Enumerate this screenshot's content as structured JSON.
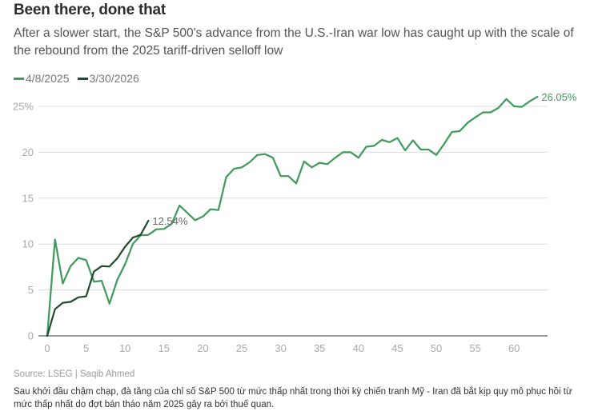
{
  "header": {
    "title": "Been there, done that",
    "subtitle": "After a slower start, the S&P 500's advance from the U.S.-Iran war low has caught up with the scale of the rebound from the 2025 tariff-driven selloff low"
  },
  "legend": [
    {
      "label": "4/8/2025",
      "color": "#3f9a5a"
    },
    {
      "label": "3/30/2026",
      "color": "#1f4d2b"
    }
  ],
  "footer": {
    "source": "Source: LSEG | Saqib Ahmed",
    "caption": "Sau khởi đầu chậm chạp, đà tăng của chỉ số S&P 500 từ mức thấp nhất trong thời kỳ chiến tranh Mỹ - Iran đã bắt kịp quy mô phục hồi từ mức thấp nhất do đợt bán tháo năm 2025 gây ra bởi thuế quan."
  },
  "chart_data": {
    "type": "line",
    "title": "Been there, done that",
    "xlabel": "",
    "ylabel": "",
    "xlim": [
      0,
      64.5
    ],
    "ylim": [
      0,
      26
    ],
    "grid": true,
    "legend_position": "top-left",
    "x_ticks": [
      0,
      5,
      10,
      15,
      20,
      25,
      30,
      35,
      40,
      45,
      50,
      55,
      60
    ],
    "y_ticks": [
      {
        "value": 0,
        "label": "0"
      },
      {
        "value": 5,
        "label": "5"
      },
      {
        "value": 10,
        "label": "10"
      },
      {
        "value": 15,
        "label": "15"
      },
      {
        "value": 20,
        "label": "20"
      },
      {
        "value": 25,
        "label": "25%"
      }
    ],
    "series": [
      {
        "name": "4/8/2025",
        "color": "#3f9a5a",
        "end_label": "26.05%",
        "x": [
          0,
          1,
          2,
          3,
          4,
          5,
          6,
          7,
          8,
          9,
          10,
          11,
          12,
          13,
          14,
          15,
          16,
          17,
          18,
          19,
          20,
          21,
          22,
          23,
          24,
          25,
          26,
          27,
          28,
          29,
          30,
          31,
          32,
          33,
          34,
          35,
          36,
          37,
          38,
          39,
          40,
          41,
          42,
          43,
          44,
          45,
          46,
          47,
          48,
          49,
          50,
          51,
          52,
          53,
          54,
          55,
          56,
          57,
          58,
          59,
          60,
          61,
          62,
          63
        ],
        "values": [
          0,
          10.5,
          5.7,
          7.6,
          8.5,
          8.25,
          5.9,
          6.0,
          3.5,
          6.1,
          7.8,
          10.0,
          10.95,
          11.0,
          11.6,
          11.65,
          12.2,
          14.2,
          13.4,
          12.6,
          13.0,
          13.8,
          13.7,
          17.3,
          18.2,
          18.35,
          18.9,
          19.7,
          19.8,
          19.4,
          17.4,
          17.4,
          16.6,
          19.0,
          18.35,
          18.85,
          18.7,
          19.4,
          20.0,
          20.0,
          19.4,
          20.6,
          20.7,
          21.35,
          21.1,
          21.55,
          20.2,
          21.3,
          20.3,
          20.3,
          19.7,
          20.9,
          22.2,
          22.3,
          23.2,
          23.8,
          24.35,
          24.35,
          24.85,
          25.8,
          25.0,
          24.95,
          25.55,
          26.05
        ]
      },
      {
        "name": "3/30/2026",
        "color": "#1f4d2b",
        "end_label": "12.54%",
        "x": [
          0,
          1,
          2,
          3,
          4,
          5,
          6,
          7,
          8,
          9,
          10,
          11,
          12,
          13
        ],
        "values": [
          0,
          2.9,
          3.6,
          3.7,
          4.2,
          4.3,
          7.0,
          7.6,
          7.55,
          8.45,
          9.7,
          10.7,
          11.0,
          12.54
        ]
      }
    ]
  }
}
